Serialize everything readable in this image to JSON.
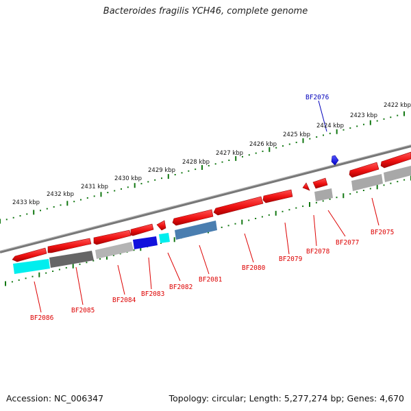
{
  "title": "Bacteroides fragilis YCH46, complete genome",
  "footer": {
    "accession": "Accession: NC_006347",
    "summary": "Topology: circular; Length: 5,277,274 bp; Genes: 4,670"
  },
  "colors": {
    "label_red": "#dd0000",
    "label_blue": "#0000bb",
    "ruler_green": "#117711",
    "backbone": "#777777"
  },
  "ruler_ticks": [
    "2433 kbp",
    "2432 kbp",
    "2431 kbp",
    "2430 kbp",
    "2429 kbp",
    "2428 kbp",
    "2427 kbp",
    "2426 kbp",
    "2425 kbp",
    "2424 kbp",
    "2423 kbp",
    "2422 kbp"
  ],
  "genes": [
    {
      "id": "BF2086",
      "strand": "rev",
      "color": "#ee1111",
      "lower": "#00eeee"
    },
    {
      "id": "BF2085",
      "strand": "fwd",
      "color": "#ee1111",
      "lower": "#666666"
    },
    {
      "id": "BF2084",
      "strand": "fwd",
      "color": "#ee1111",
      "lower": "#b4b4b4"
    },
    {
      "id": "BF2083",
      "strand": "fwd",
      "color": "#ee1111",
      "lower": "#1111dd"
    },
    {
      "id": "BF2082",
      "strand": "rev",
      "color": "#ee1111",
      "lower": "#00eeee"
    },
    {
      "id": "BF2081",
      "strand": "rev",
      "color": "#ee1111",
      "lower": "#4a7eb0"
    },
    {
      "id": "BF2080",
      "strand": "fwd",
      "color": "#ee1111",
      "lower": null
    },
    {
      "id": "BF2079",
      "strand": "fwd",
      "color": "#ee1111",
      "lower": null
    },
    {
      "id": "BF2078",
      "strand": "rev",
      "color": "#ee1111",
      "lower": null
    },
    {
      "id": "BF2077",
      "strand": "rev",
      "color": "#ee1111",
      "lower": "#a8a8a8"
    },
    {
      "id": "BF2076",
      "strand": "rev",
      "color": "#1111ee",
      "lower": null
    },
    {
      "id": "BF2075",
      "strand": "rev",
      "color": "#ee1111",
      "lower": "#a8a8a8"
    }
  ]
}
